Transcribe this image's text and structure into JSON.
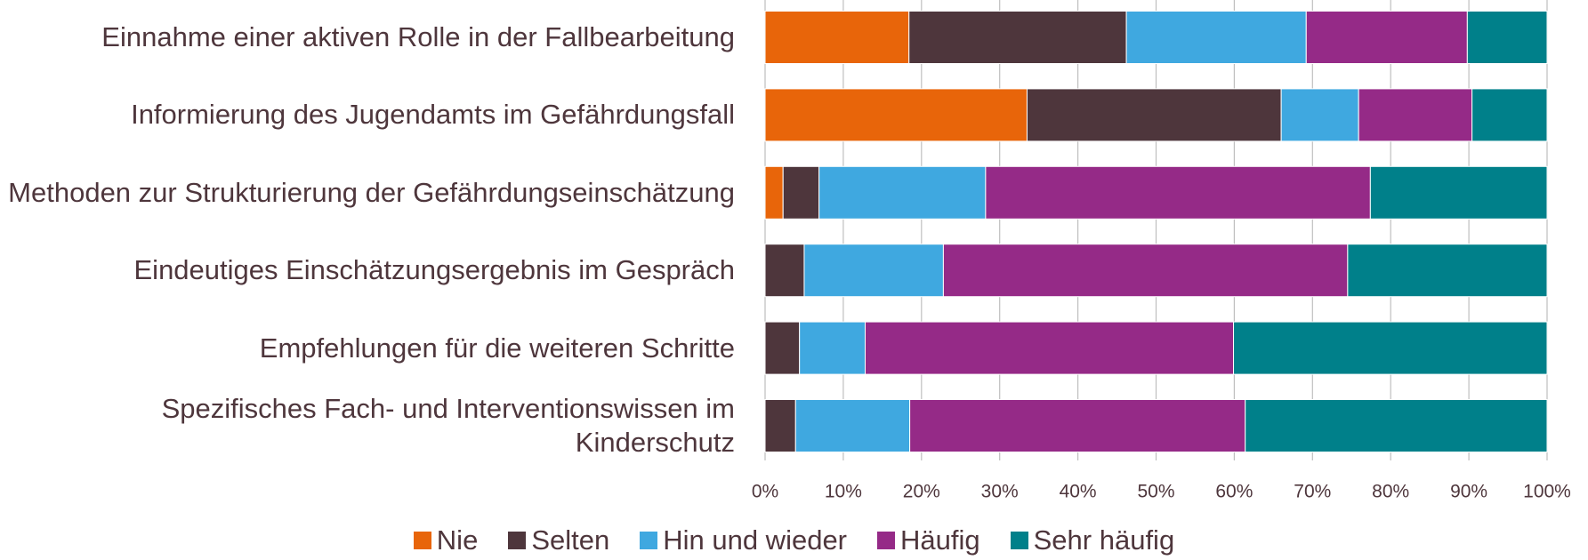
{
  "chart_data": {
    "type": "stacked-bar-horizontal",
    "categories": [
      "Einnahme einer aktiven Rolle in der Fallbearbeitung",
      "Informierung des Jugendamts im Gefährdungsfall",
      "Methoden zur Strukturierung der Gefährdungseinschätzung",
      "Eindeutiges Einschätzungsergebnis im Gespräch",
      "Empfehlungen für die weiteren Schritte",
      "Spezifisches Fach- und Interventionswissen im Kinderschutz"
    ],
    "series": [
      {
        "name": "Nie",
        "color": "#e8650a",
        "values": [
          18.4,
          33.5,
          2.3,
          0,
          0,
          0
        ]
      },
      {
        "name": "Selten",
        "color": "#4e363c",
        "values": [
          27.8,
          32.5,
          4.6,
          5.0,
          4.4,
          3.9
        ]
      },
      {
        "name": "Hin und wieder",
        "color": "#3fa8e0",
        "values": [
          23.0,
          9.9,
          21.3,
          17.8,
          8.4,
          14.6
        ]
      },
      {
        "name": "Häufig",
        "color": "#952a87",
        "values": [
          20.6,
          14.5,
          49.2,
          51.7,
          47.1,
          42.9
        ]
      },
      {
        "name": "Sehr häufig",
        "color": "#00808a",
        "values": [
          10.2,
          9.6,
          22.6,
          25.5,
          40.1,
          38.6
        ]
      }
    ],
    "xlim": [
      0,
      100
    ],
    "xticks": [
      {
        "value": 0,
        "label": "0%"
      },
      {
        "value": 10,
        "label": "10%"
      },
      {
        "value": 20,
        "label": "20%"
      },
      {
        "value": 30,
        "label": "30%"
      },
      {
        "value": 40,
        "label": "40%"
      },
      {
        "value": 50,
        "label": "50%"
      },
      {
        "value": 60,
        "label": "60%"
      },
      {
        "value": 70,
        "label": "70%"
      },
      {
        "value": 80,
        "label": "80%"
      },
      {
        "value": 90,
        "label": "90%"
      },
      {
        "value": 100,
        "label": "100%"
      }
    ],
    "grid": true,
    "legend": "bottom"
  }
}
